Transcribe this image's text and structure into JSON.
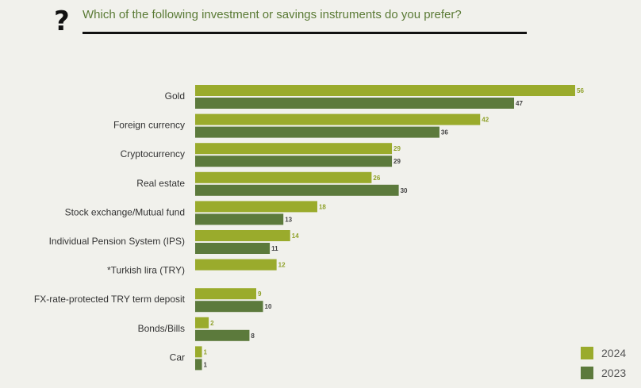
{
  "question": {
    "mark": "?",
    "title": "Which of the following investment or savings instruments do you prefer?"
  },
  "colors": {
    "2024": "#9aab2c",
    "2023": "#5c7a3c",
    "label_2024": "#8fa12a",
    "label_2023": "#444444"
  },
  "chart_data": {
    "type": "bar",
    "orientation": "horizontal",
    "title": "Which of the following investment or savings instruments do you prefer?",
    "categories": [
      "Gold",
      "Foreign currency",
      "Cryptocurrency",
      "Real estate",
      "Stock exchange/Mutual fund",
      "Individual Pension System (IPS)",
      "*Turkish lira (TRY)",
      "FX-rate-protected TRY term deposit",
      "Bonds/Bills",
      "Car"
    ],
    "series": [
      {
        "name": "2024",
        "values": [
          56,
          42,
          29,
          26,
          18,
          14,
          12,
          9,
          2,
          1
        ]
      },
      {
        "name": "2023",
        "values": [
          47,
          36,
          29,
          30,
          13,
          11,
          null,
          10,
          8,
          1
        ]
      }
    ],
    "xlim": [
      0,
      56
    ],
    "grid": false,
    "legend_position": "bottom-right"
  },
  "legend": {
    "items": [
      {
        "label": "2024"
      },
      {
        "label": "2023"
      }
    ]
  }
}
